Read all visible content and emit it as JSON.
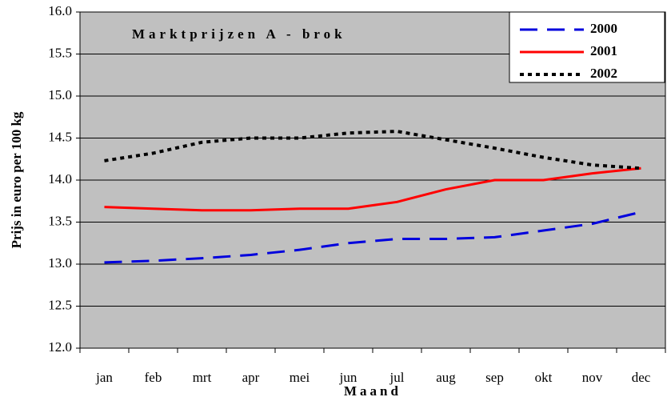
{
  "chart_data": {
    "type": "line",
    "title": "Marktprijzen A - brok",
    "x_label": "Maand",
    "y_label": "Prijs in euro  per 100 kg",
    "categories": [
      "jan",
      "feb",
      "mrt",
      "apr",
      "mei",
      "jun",
      "jul",
      "aug",
      "sep",
      "okt",
      "nov",
      "dec"
    ],
    "series": [
      {
        "name": "2000",
        "color": "#0000dd",
        "style": "dashed",
        "values": [
          13.02,
          13.04,
          13.07,
          13.11,
          13.17,
          13.25,
          13.3,
          13.3,
          13.32,
          13.4,
          13.48,
          13.62
        ]
      },
      {
        "name": "2001",
        "color": "#ff0000",
        "style": "solid",
        "values": [
          13.68,
          13.66,
          13.64,
          13.64,
          13.66,
          13.66,
          13.74,
          13.89,
          14.0,
          14.0,
          14.08,
          14.14
        ]
      },
      {
        "name": "2002",
        "color": "#000000",
        "style": "dotted",
        "values": [
          14.23,
          14.32,
          14.45,
          14.5,
          14.5,
          14.56,
          14.58,
          14.48,
          14.38,
          14.27,
          14.18,
          14.14
        ]
      }
    ],
    "ylim": [
      12,
      16
    ],
    "yticks": [
      {
        "value": 12,
        "label": "12.0"
      },
      12.5,
      {
        "value": 13,
        "label": "13.0"
      },
      13.5,
      {
        "value": 14,
        "label": "14.0"
      },
      14.5,
      {
        "value": 15,
        "label": "15.0"
      },
      15.5,
      {
        "value": 16,
        "label": "16.0"
      }
    ],
    "grid": true,
    "legend": "top-right",
    "background": "#c0c0c0"
  }
}
